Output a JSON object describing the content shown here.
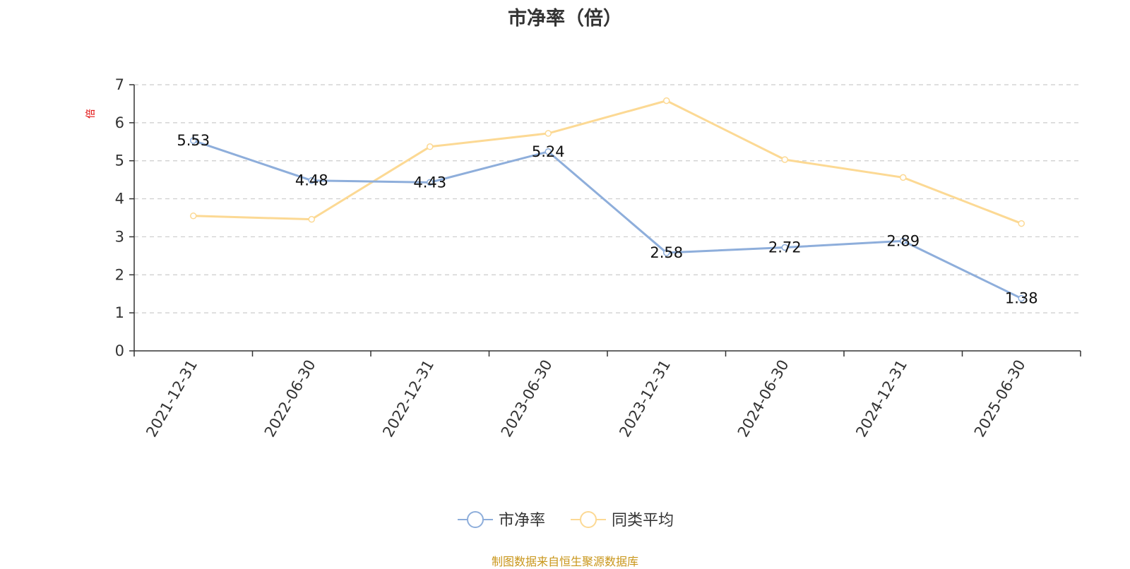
{
  "title": "市净率（倍）",
  "source_note": "制图数据来自恒生聚源数据库",
  "colors": {
    "series_1": "#8eaedb",
    "series_2": "#fcd994",
    "unit": "#e00000",
    "source": "#c9961a",
    "grid": "#cccccc",
    "axis": "#333333"
  },
  "chart_data": {
    "type": "line",
    "title": "市净率（倍）",
    "ylabel": "倍",
    "xlabel": "",
    "ylim": [
      0,
      7
    ],
    "yticks": [
      0,
      1,
      2,
      3,
      4,
      5,
      6,
      7
    ],
    "grid": true,
    "legend_position": "bottom-center",
    "categories": [
      "2021-12-31",
      "2022-06-30",
      "2022-12-31",
      "2023-06-30",
      "2023-12-31",
      "2024-06-30",
      "2024-12-31",
      "2025-06-30"
    ],
    "series": [
      {
        "name": "市净率",
        "values": [
          5.53,
          4.48,
          4.43,
          5.24,
          2.58,
          2.72,
          2.89,
          1.38
        ],
        "labels": [
          "5.53",
          "4.48",
          "4.43",
          "5.24",
          "2.58",
          "2.72",
          "2.89",
          "1.38"
        ]
      },
      {
        "name": "同类平均",
        "values": [
          3.55,
          3.46,
          5.37,
          5.72,
          6.58,
          5.03,
          4.56,
          3.35
        ]
      }
    ]
  }
}
